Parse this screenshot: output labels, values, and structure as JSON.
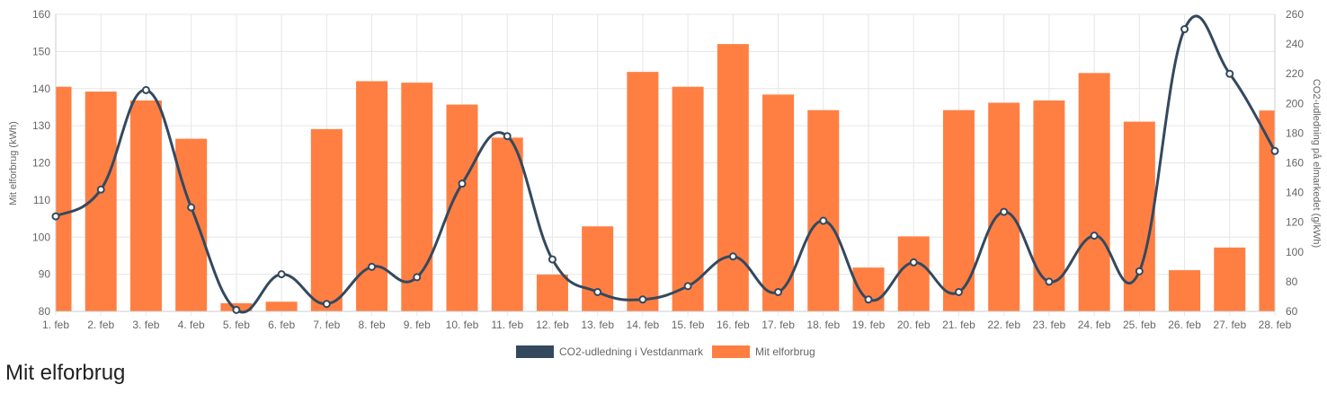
{
  "heading": "Mit elforbrug",
  "chart_data": {
    "type": "bar",
    "categories": [
      "1. feb",
      "2. feb",
      "3. feb",
      "4. feb",
      "5. feb",
      "6. feb",
      "7. feb",
      "8. feb",
      "9. feb",
      "10. feb",
      "11. feb",
      "12. feb",
      "13. feb",
      "14. feb",
      "15. feb",
      "16. feb",
      "17. feb",
      "18. feb",
      "19. feb",
      "20. feb",
      "21. feb",
      "22. feb",
      "23. feb",
      "24. feb",
      "25. feb",
      "26. feb",
      "27. feb",
      "28. feb"
    ],
    "series": [
      {
        "name": "CO2-udledning i Vestdanmark",
        "type": "line",
        "axis": "right",
        "color": "#34495e",
        "values": [
          124,
          142,
          209,
          130,
          61,
          85,
          65,
          90,
          83,
          146,
          178,
          95,
          73,
          68,
          77,
          97,
          73,
          121,
          68,
          93,
          73,
          127,
          80,
          111,
          87,
          250,
          220,
          168
        ]
      },
      {
        "name": "Mit elforbrug",
        "type": "bar",
        "axis": "left",
        "color": "#ff7f43",
        "values": [
          140.5,
          139.2,
          136.8,
          126.5,
          82.2,
          82.6,
          129.1,
          142.0,
          141.6,
          135.7,
          126.8,
          89.9,
          102.9,
          144.5,
          140.5,
          152.0,
          138.4,
          134.2,
          91.8,
          100.2,
          134.2,
          136.2,
          136.8,
          144.2,
          131.1,
          91.1,
          97.2,
          134.1
        ]
      }
    ],
    "y_left": {
      "label": "Mit elforbrug (kWh)",
      "min": 80,
      "max": 160,
      "step": 10
    },
    "y_right": {
      "label": "CO2-udledning på elmarkedet (g/kWh)",
      "min": 60,
      "max": 260,
      "step": 20
    },
    "grid": true,
    "legend_position": "bottom"
  }
}
